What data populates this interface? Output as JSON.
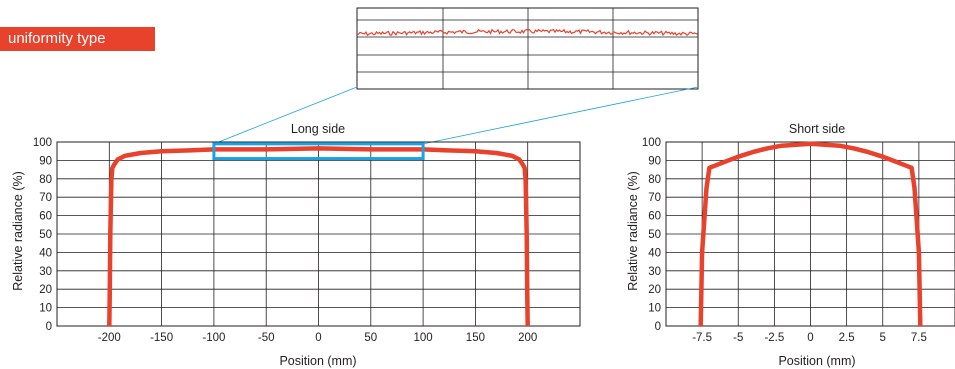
{
  "badge": {
    "label": "uniformity type"
  },
  "chart_data": [
    {
      "id": "long",
      "type": "line",
      "title": "Long side",
      "xlabel": "Position (mm)",
      "ylabel": "Relative radiance (%)",
      "xlim": [
        -250,
        250
      ],
      "ylim": [
        0,
        100
      ],
      "xticks": [
        -200,
        -150,
        -100,
        -50,
        0,
        50,
        100,
        150,
        200
      ],
      "yticks": [
        0,
        10,
        20,
        30,
        40,
        50,
        60,
        70,
        80,
        90,
        100
      ],
      "grid": true,
      "highlight": {
        "x": [
          -100,
          100
        ],
        "y": [
          91,
          99
        ],
        "color": "#1aa3e0"
      },
      "series": [
        {
          "color": "#e8412c",
          "points": [
            [
              -200,
              0
            ],
            [
              -199.5,
              20
            ],
            [
              -199,
              50
            ],
            [
              -198,
              80
            ],
            [
              -197,
              86
            ],
            [
              -195,
              88
            ],
            [
              -192,
              90.5
            ],
            [
              -185,
              92.5
            ],
            [
              -170,
              94
            ],
            [
              -150,
              95
            ],
            [
              -120,
              95.5
            ],
            [
              -100,
              96
            ],
            [
              -50,
              96
            ],
            [
              0,
              96.5
            ],
            [
              50,
              96
            ],
            [
              100,
              96
            ],
            [
              120,
              95.5
            ],
            [
              150,
              95
            ],
            [
              170,
              94
            ],
            [
              185,
              92.5
            ],
            [
              192,
              90.5
            ],
            [
              195,
              88
            ],
            [
              197,
              86
            ],
            [
              198,
              80
            ],
            [
              199,
              50
            ],
            [
              199.5,
              20
            ],
            [
              200,
              0
            ]
          ]
        }
      ]
    },
    {
      "id": "short",
      "type": "line",
      "title": "Short side",
      "xlabel": "Position (mm)",
      "ylabel": "Relative radiance (%)",
      "xlim": [
        -10,
        10
      ],
      "ylim": [
        0,
        100
      ],
      "xticks": [
        "-7.5",
        "-5",
        "-2.5",
        "0",
        "2.5",
        "5",
        "7.5"
      ],
      "yticks": [
        0,
        10,
        20,
        30,
        40,
        50,
        60,
        70,
        80,
        90,
        100
      ],
      "grid": true,
      "series": [
        {
          "color": "#e8412c",
          "points": [
            [
              -7.6,
              0
            ],
            [
              -7.5,
              40
            ],
            [
              -7.2,
              75
            ],
            [
              -7,
              86
            ],
            [
              -6,
              89
            ],
            [
              -5,
              92
            ],
            [
              -4,
              94.5
            ],
            [
              -3,
              96.5
            ],
            [
              -2,
              98
            ],
            [
              -1,
              98.5
            ],
            [
              0,
              99
            ],
            [
              1,
              98.5
            ],
            [
              2,
              98
            ],
            [
              3,
              96.5
            ],
            [
              4,
              94.5
            ],
            [
              5,
              92
            ],
            [
              6,
              89
            ],
            [
              7,
              86
            ],
            [
              7.2,
              75
            ],
            [
              7.5,
              40
            ],
            [
              7.6,
              0
            ]
          ]
        }
      ]
    }
  ]
}
